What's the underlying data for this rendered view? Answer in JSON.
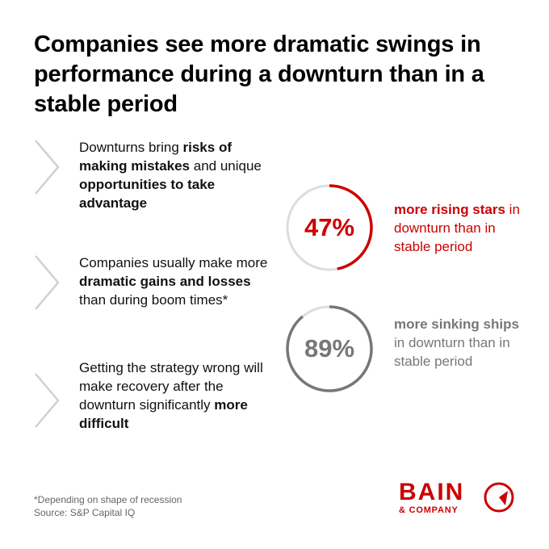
{
  "title": "Companies see more dramatic swings in performance during a downturn than in a stable period",
  "bullets": [
    {
      "p1": "Downturns bring ",
      "b1": "risks of making mistakes",
      "p2": " and unique ",
      "b2": "opportunities to take advantage"
    },
    {
      "p1": "Companies usually make more ",
      "b1": "dramatic gains and losses",
      "p2": " than during boom times*"
    },
    {
      "p1": "Getting the strategy wrong will make recovery after the downturn significantly ",
      "b1": "more difficult"
    }
  ],
  "stats": [
    {
      "value": 47,
      "value_label": "47%",
      "bold": "more rising stars",
      "rest": " in downturn than in stable period",
      "color": "#cc0000"
    },
    {
      "value": 89,
      "value_label": "89%",
      "bold": "more sinking ships",
      "rest": " in downturn than in stable period",
      "color": "#777777"
    }
  ],
  "footnote": {
    "line1": "*Depending on shape of recession",
    "line2": "Source: S&P Capital IQ"
  },
  "logo": {
    "name": "BAIN",
    "sub": "& COMPANY",
    "color": "#cc0000"
  },
  "colors": {
    "accent_red": "#cc0000",
    "gray_stat": "#777777",
    "ring_track": "#dddddd",
    "arrow": "#d0d0d0"
  }
}
